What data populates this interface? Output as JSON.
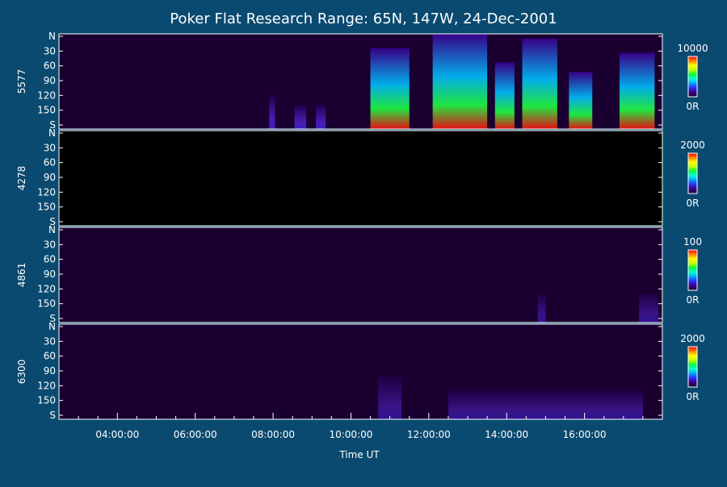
{
  "chart_data": {
    "type": "heatmap",
    "title": "Poker Flat Research Range: 65N, 147W, 24-Dec-2001",
    "xlabel": "Time UT",
    "x_ticks": [
      "04:00:00",
      "06:00:00",
      "08:00:00",
      "10:00:00",
      "12:00:00",
      "14:00:00",
      "16:00:00"
    ],
    "x_range_hours": [
      2.5,
      18.0
    ],
    "y_ticks": [
      "N",
      "30",
      "60",
      "90",
      "120",
      "150",
      "S"
    ],
    "y_range": [
      0,
      180
    ],
    "colormap": [
      "#1a0033",
      "#3a0080",
      "#2a2aff",
      "#00a0ff",
      "#00ffd0",
      "#00ff40",
      "#c0ff00",
      "#ffff00",
      "#ff8000",
      "#ff0000"
    ],
    "background_color": "#0a4a70",
    "panels": [
      {
        "label": "5577",
        "scale_max": "10000",
        "scale_min": "0R",
        "features": [
          {
            "t": [
              7.9,
              8.05
            ],
            "mag": 0.35
          },
          {
            "t": [
              8.55,
              8.85
            ],
            "mag": 0.25
          },
          {
            "t": [
              9.1,
              9.35
            ],
            "mag": 0.25
          },
          {
            "t": [
              10.5,
              11.5
            ],
            "mag": 0.85
          },
          {
            "t": [
              12.1,
              13.5
            ],
            "mag": 1.0
          },
          {
            "t": [
              13.7,
              14.2
            ],
            "mag": 0.7
          },
          {
            "t": [
              14.4,
              15.3
            ],
            "mag": 0.95
          },
          {
            "t": [
              15.6,
              16.2
            ],
            "mag": 0.6
          },
          {
            "t": [
              16.9,
              17.8
            ],
            "mag": 0.8
          }
        ]
      },
      {
        "label": "4278",
        "scale_max": "2000",
        "scale_min": "0R",
        "features": []
      },
      {
        "label": "4861",
        "scale_max": "100",
        "scale_min": "0R",
        "features": [
          {
            "t": [
              14.8,
              15.0
            ],
            "mag": 0.3
          },
          {
            "t": [
              17.4,
              17.9
            ],
            "mag": 0.3
          }
        ]
      },
      {
        "label": "6300",
        "scale_max": "2000",
        "scale_min": "0R",
        "features": [
          {
            "t": [
              10.7,
              11.3
            ],
            "mag": 0.45
          },
          {
            "t": [
              12.5,
              17.5
            ],
            "mag": 0.3
          }
        ]
      }
    ]
  }
}
